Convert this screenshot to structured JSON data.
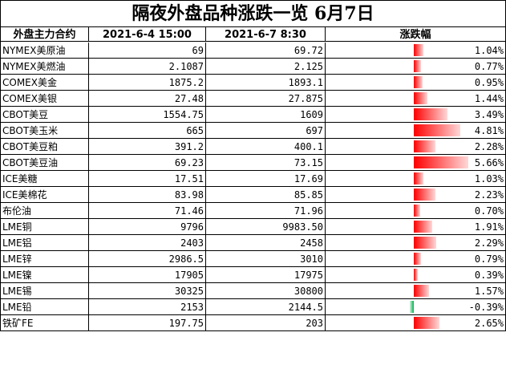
{
  "title": "隔夜外盘品种涨跌一览 6月7日",
  "headers": [
    "外盘主力合约",
    "2021-6-4 15:00",
    "2021-6-7 8:30",
    "涨跌幅"
  ],
  "colors": {
    "up": "#ff0000",
    "down": "#00b050",
    "grid": "#000000"
  },
  "rows": [
    {
      "name": "NYMEX美原油",
      "prev": "69",
      "curr": "69.72",
      "change": "1.04%",
      "pct": 1.04
    },
    {
      "name": "NYMEX美燃油",
      "prev": "2.1087",
      "curr": "2.125",
      "change": "0.77%",
      "pct": 0.77
    },
    {
      "name": "COMEX美金",
      "prev": "1875.2",
      "curr": "1893.1",
      "change": "0.95%",
      "pct": 0.95
    },
    {
      "name": "COMEX美银",
      "prev": "27.48",
      "curr": "27.875",
      "change": "1.44%",
      "pct": 1.44
    },
    {
      "name": "CBOT美豆",
      "prev": "1554.75",
      "curr": "1609",
      "change": "3.49%",
      "pct": 3.49
    },
    {
      "name": "CBOT美玉米",
      "prev": "665",
      "curr": "697",
      "change": "4.81%",
      "pct": 4.81
    },
    {
      "name": "CBOT美豆粕",
      "prev": "391.2",
      "curr": "400.1",
      "change": "2.28%",
      "pct": 2.28
    },
    {
      "name": "CBOT美豆油",
      "prev": "69.23",
      "curr": "73.15",
      "change": "5.66%",
      "pct": 5.66
    },
    {
      "name": "ICE美糖",
      "prev": "17.51",
      "curr": "17.69",
      "change": "1.03%",
      "pct": 1.03
    },
    {
      "name": "ICE美棉花",
      "prev": "83.98",
      "curr": "85.85",
      "change": "2.23%",
      "pct": 2.23
    },
    {
      "name": "布伦油",
      "prev": "71.46",
      "curr": "71.96",
      "change": "0.70%",
      "pct": 0.7
    },
    {
      "name": "LME铜",
      "prev": "9796",
      "curr": "9983.50",
      "change": "1.91%",
      "pct": 1.91
    },
    {
      "name": "LME铝",
      "prev": "2403",
      "curr": "2458",
      "change": "2.29%",
      "pct": 2.29
    },
    {
      "name": "LME锌",
      "prev": "2986.5",
      "curr": "3010",
      "change": "0.79%",
      "pct": 0.79
    },
    {
      "name": "LME镍",
      "prev": "17905",
      "curr": "17975",
      "change": "0.39%",
      "pct": 0.39
    },
    {
      "name": "LME锡",
      "prev": "30325",
      "curr": "30800",
      "change": "1.57%",
      "pct": 1.57
    },
    {
      "name": "LME铅",
      "prev": "2153",
      "curr": "2144.5",
      "change": "-0.39%",
      "pct": -0.39
    },
    {
      "name": "铁矿FE",
      "prev": "197.75",
      "curr": "203",
      "change": "2.65%",
      "pct": 2.65
    }
  ]
}
